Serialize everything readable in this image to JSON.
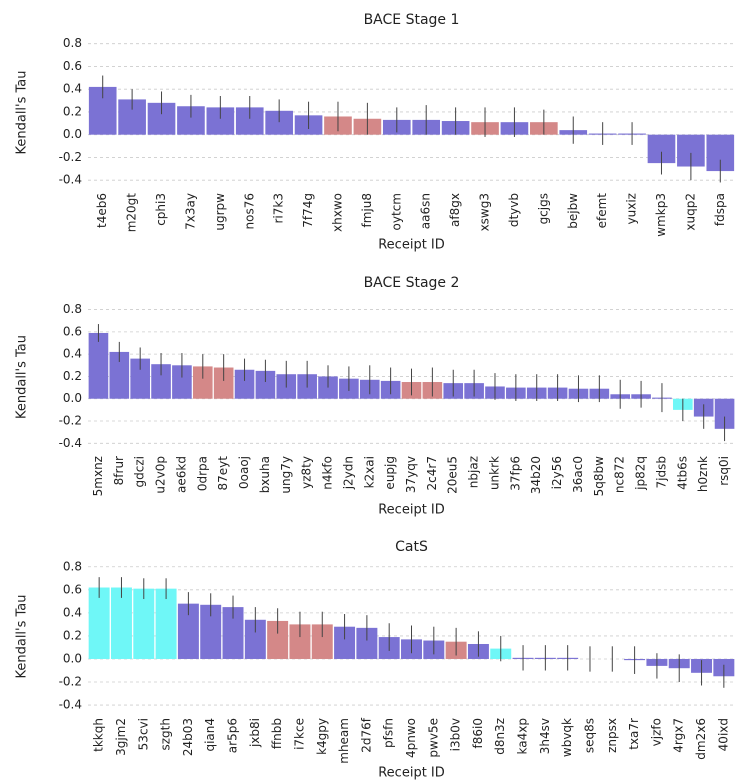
{
  "chart_data": [
    {
      "type": "bar",
      "title": "BACE Stage 1",
      "x_label": "Receipt ID",
      "y_label": "Kendall's Tau",
      "categories": [
        "t4eb6",
        "m20gt",
        "cphi3",
        "7x3ay",
        "ugrpw",
        "nos76",
        "ri7k3",
        "7f74g",
        "xhxwo",
        "fmju8",
        "oytcm",
        "aa6sn",
        "af8gx",
        "xswg3",
        "dtyvb",
        "gcjgs",
        "bejbw",
        "efemt",
        "yuxiz",
        "wmkp3",
        "xuqp2",
        "fdspa"
      ],
      "values": [
        0.42,
        0.31,
        0.28,
        0.25,
        0.24,
        0.24,
        0.21,
        0.17,
        0.16,
        0.14,
        0.13,
        0.13,
        0.12,
        0.11,
        0.11,
        0.11,
        0.04,
        0.01,
        0.01,
        -0.25,
        -0.28,
        -0.32
      ],
      "errors": [
        0.1,
        0.09,
        0.1,
        0.1,
        0.1,
        0.1,
        0.1,
        0.12,
        0.13,
        0.14,
        0.11,
        0.13,
        0.12,
        0.13,
        0.13,
        0.11,
        0.12,
        0.1,
        0.1,
        0.1,
        0.12,
        0.1
      ],
      "colors": [
        "#7b72d4",
        "#7b72d4",
        "#7b72d4",
        "#7b72d4",
        "#7b72d4",
        "#7b72d4",
        "#7b72d4",
        "#7b72d4",
        "#d48888",
        "#d48888",
        "#7b72d4",
        "#7b72d4",
        "#7b72d4",
        "#d48888",
        "#7b72d4",
        "#d48888",
        "#7b72d4",
        "#7b72d4",
        "#7b72d4",
        "#7b72d4",
        "#7b72d4",
        "#7b72d4"
      ],
      "ylim": [
        -0.46,
        0.85
      ],
      "yticks": [
        -0.4,
        -0.2,
        {
          "value": 0,
          "label": "0.0"
        },
        0.2,
        0.4,
        0.6,
        0.8
      ],
      "grid": true
    },
    {
      "type": "bar",
      "title": "BACE Stage 2",
      "x_label": "Receipt ID",
      "y_label": "Kendall's Tau",
      "categories": [
        "5mxnz",
        "8frur",
        "gdczi",
        "u2v0p",
        "ae6kd",
        "0drpa",
        "87eyt",
        "0oaoj",
        "bxuha",
        "ung7y",
        "yz8ty",
        "n4kfo",
        "j2ydn",
        "k2xai",
        "eupjg",
        "37yqv",
        "2c4r7",
        "20eu5",
        "nbjaz",
        "unkrk",
        "37fp6",
        "34b20",
        "i2y56",
        "36ac0",
        "5q8bw",
        "nc872",
        "jp82q",
        "7jdsb",
        "4tb6s",
        "h0znk",
        "rsq0i"
      ],
      "values": [
        0.59,
        0.42,
        0.36,
        0.31,
        0.3,
        0.29,
        0.28,
        0.26,
        0.25,
        0.22,
        0.22,
        0.2,
        0.18,
        0.17,
        0.16,
        0.15,
        0.15,
        0.14,
        0.14,
        0.11,
        0.1,
        0.1,
        0.1,
        0.09,
        0.09,
        0.04,
        0.04,
        0.01,
        -0.1,
        -0.16,
        -0.27
      ],
      "errors": [
        0.08,
        0.09,
        0.1,
        0.1,
        0.11,
        0.11,
        0.12,
        0.1,
        0.1,
        0.12,
        0.12,
        0.1,
        0.11,
        0.13,
        0.12,
        0.12,
        0.13,
        0.12,
        0.12,
        0.12,
        0.12,
        0.12,
        0.12,
        0.12,
        0.12,
        0.13,
        0.12,
        0.13,
        0.1,
        0.11,
        0.11
      ],
      "colors": [
        "#7b72d4",
        "#7b72d4",
        "#7b72d4",
        "#7b72d4",
        "#7b72d4",
        "#d48888",
        "#d48888",
        "#7b72d4",
        "#7b72d4",
        "#7b72d4",
        "#7b72d4",
        "#7b72d4",
        "#7b72d4",
        "#7b72d4",
        "#7b72d4",
        "#d48888",
        "#d48888",
        "#7b72d4",
        "#7b72d4",
        "#7b72d4",
        "#7b72d4",
        "#7b72d4",
        "#7b72d4",
        "#7b72d4",
        "#7b72d4",
        "#7b72d4",
        "#7b72d4",
        "#7b72d4",
        "#6ff7f7",
        "#7b72d4",
        "#7b72d4"
      ],
      "ylim": [
        -0.46,
        0.85
      ],
      "yticks": [
        -0.4,
        -0.2,
        {
          "value": 0,
          "label": "0.0"
        },
        0.2,
        0.4,
        0.6,
        0.8
      ],
      "grid": true
    },
    {
      "type": "bar",
      "title": "CatS",
      "x_label": "Receipt ID",
      "y_label": "Kendall's Tau",
      "categories": [
        "tkkqh",
        "3gjm2",
        "53cvi",
        "szgth",
        "24b03",
        "qian4",
        "ar5p6",
        "jxb8i",
        "ffnbb",
        "i7kce",
        "k4gpy",
        "mheam",
        "2d76f",
        "pfsfn",
        "4pnwo",
        "pwv5e",
        "i3b0v",
        "f86i0",
        "d8n3z",
        "ka4xp",
        "3h4sv",
        "wbvqk",
        "seq8s",
        "znpsx",
        "txa7r",
        "vjzfo",
        "4rgx7",
        "dm2x6",
        "40ixd"
      ],
      "values": [
        0.62,
        0.62,
        0.61,
        0.61,
        0.48,
        0.47,
        0.45,
        0.34,
        0.33,
        0.3,
        0.3,
        0.28,
        0.27,
        0.19,
        0.17,
        0.16,
        0.15,
        0.13,
        0.09,
        0.01,
        0.01,
        0.01,
        0,
        0,
        -0.01,
        -0.06,
        -0.08,
        -0.12,
        -0.15
      ],
      "errors": [
        0.09,
        0.09,
        0.09,
        0.09,
        0.1,
        0.1,
        0.1,
        0.11,
        0.11,
        0.11,
        0.11,
        0.11,
        0.11,
        0.12,
        0.12,
        0.12,
        0.12,
        0.11,
        0.11,
        0.11,
        0.11,
        0.11,
        0.11,
        0.11,
        0.12,
        0.11,
        0.12,
        0.11,
        0.1
      ],
      "colors": [
        "#6ff7f7",
        "#6ff7f7",
        "#6ff7f7",
        "#6ff7f7",
        "#7b72d4",
        "#7b72d4",
        "#7b72d4",
        "#7b72d4",
        "#d48888",
        "#d48888",
        "#d48888",
        "#7b72d4",
        "#7b72d4",
        "#7b72d4",
        "#7b72d4",
        "#7b72d4",
        "#d48888",
        "#7b72d4",
        "#6ff7f7",
        "#7b72d4",
        "#7b72d4",
        "#7b72d4",
        "#7b72d4",
        "#7b72d4",
        "#7b72d4",
        "#7b72d4",
        "#7b72d4",
        "#7b72d4",
        "#7b72d4"
      ],
      "ylim": [
        -0.46,
        0.85
      ],
      "yticks": [
        -0.4,
        -0.2,
        {
          "value": 0,
          "label": "0.0"
        },
        0.2,
        0.4,
        0.6,
        0.8
      ],
      "grid": true
    }
  ]
}
